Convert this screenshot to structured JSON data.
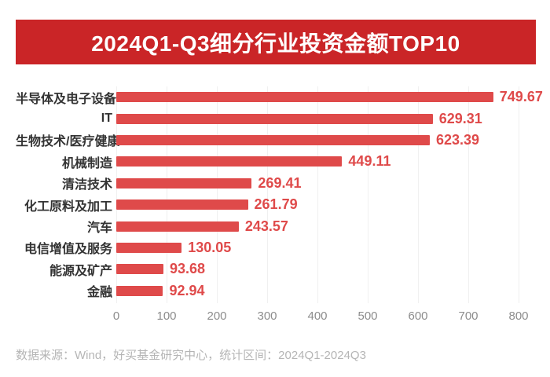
{
  "header": {
    "title": "2024Q1-Q3细分行业投资金额TOP10",
    "background_color": "#CA2527",
    "text_color": "#FFFFFF"
  },
  "chart_data": {
    "type": "bar",
    "orientation": "horizontal",
    "title": "2024Q1-Q3细分行业投资金额TOP10",
    "categories": [
      "半导体及电子设备",
      "IT",
      "生物技术/医疗健康",
      "机械制造",
      "清洁技术",
      "化工原料及加工",
      "汽车",
      "电信增值及服务",
      "能源及矿产",
      "金融"
    ],
    "values": [
      749.67,
      629.31,
      623.39,
      449.11,
      269.41,
      261.79,
      243.57,
      130.05,
      93.68,
      92.94
    ],
    "value_labels": [
      "749.67",
      "629.31",
      "623.39",
      "449.11",
      "269.41",
      "261.79",
      "243.57",
      "130.05",
      "93.68",
      "92.94"
    ],
    "xlim": [
      0,
      800
    ],
    "x_ticks": [
      "0",
      "100",
      "200",
      "300",
      "400",
      "500",
      "600",
      "700",
      "800"
    ],
    "grid": true,
    "legend": "none",
    "bar_color": "#DF4A4A",
    "value_label_color": "#DF4A4A",
    "category_label_color": "#333333",
    "tick_label_color": "#8C8C8C",
    "gridline_color": "#F0F0F0"
  },
  "footer": {
    "source_note": "数据来源：Wind，好买基金研究中心，统计区间：2024Q1-2024Q3"
  }
}
